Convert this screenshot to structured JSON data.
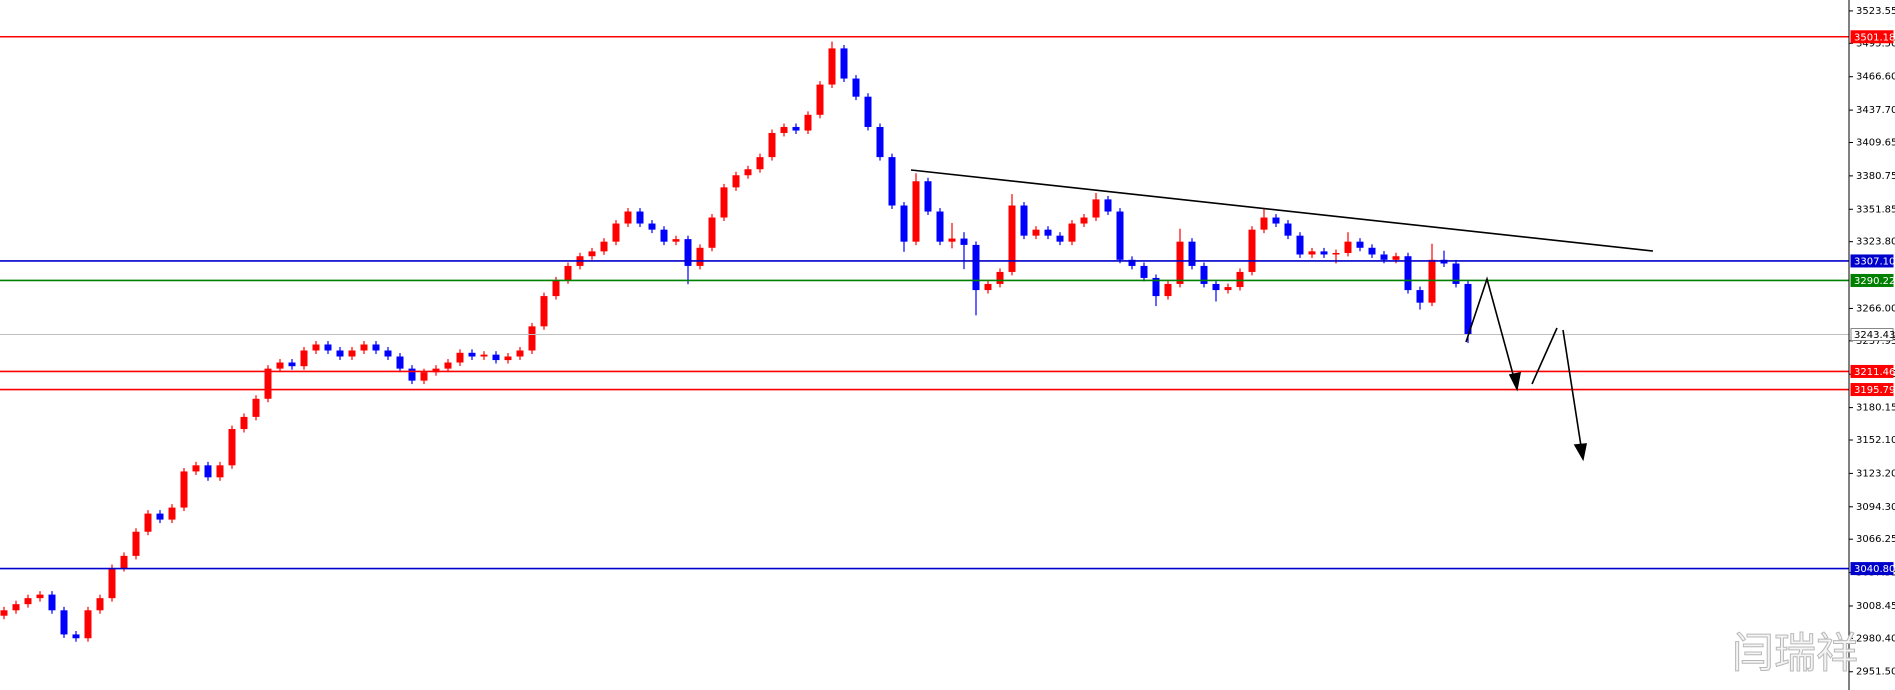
{
  "chart_data": {
    "type": "candlestick",
    "watermark": "闫瑞祥",
    "up_color": "#ff0000",
    "down_color": "#0000ff",
    "ylim": [
      2935.7,
      3533.0
    ],
    "yticks": [
      3523.55,
      {
        "value": 3495.5,
        "label": "3495.50"
      },
      {
        "value": 3466.6,
        "label": "3466.60"
      },
      {
        "value": 3437.7,
        "label": "3437.70"
      },
      3409.65,
      3380.75,
      3351.85,
      {
        "value": 3323.8,
        "label": "3323.80"
      },
      {
        "value": 3266.0,
        "label": "3266.00"
      },
      3237.95,
      3209.05,
      3180.15,
      {
        "value": 3152.1,
        "label": "3152.10"
      },
      {
        "value": 3123.2,
        "label": "3123.20"
      },
      {
        "value": 3094.3,
        "label": "3094.30"
      },
      3066.25,
      3037.35,
      3008.45,
      {
        "value": 2980.4,
        "label": "2980.40"
      },
      {
        "value": 2951.5,
        "label": "2951.50"
      }
    ],
    "levels": [
      {
        "value": 3501.18,
        "color": "#ff0000"
      },
      {
        "value": {
          "value": 3307.1,
          "label": "3307.10"
        },
        "color": "#0000cc"
      },
      {
        "value": 3290.22,
        "color": "#008000"
      },
      {
        "value": 3243.43,
        "color": "#c0c0c0"
      },
      {
        "value": 3211.46,
        "color": "#ff0000"
      },
      {
        "value": 3195.79,
        "color": "#ff0000"
      },
      {
        "value": {
          "value": 3040.8,
          "label": "3040.80"
        },
        "color": "#0000cc"
      }
    ],
    "ohlc": [
      [
        3000.0,
        3007.7,
        2997.0,
        3004.7
      ],
      [
        3004.7,
        3013.0,
        3001.7,
        3010.0
      ],
      [
        3010.0,
        3018.2,
        3007.0,
        3015.2
      ],
      [
        3015.2,
        3021.3,
        3012.2,
        3018.3
      ],
      [
        3018.3,
        3021.3,
        3001.7,
        3004.7
      ],
      [
        3004.7,
        3007.7,
        2980.8,
        2983.8
      ],
      [
        2983.8,
        2986.8,
        2977.5,
        2980.5
      ],
      [
        2980.5,
        3007.7,
        2977.5,
        3004.7
      ],
      [
        3004.7,
        3018.2,
        3001.7,
        3015.2
      ],
      [
        3015.2,
        3044.3,
        3012.2,
        3041.3
      ],
      [
        3041.3,
        3054.8,
        3038.3,
        3051.8
      ],
      [
        3051.8,
        3075.7,
        3048.8,
        3072.7
      ],
      [
        3072.7,
        3091.4,
        3069.7,
        3088.4
      ],
      [
        3088.4,
        3091.4,
        3080.2,
        3083.2
      ],
      [
        3083.2,
        3096.6,
        3080.2,
        3093.6
      ],
      [
        3093.6,
        3127.9,
        3090.6,
        3124.9
      ],
      [
        3124.9,
        3133.2,
        3121.9,
        3130.2
      ],
      [
        3130.2,
        3133.2,
        3116.8,
        3119.8
      ],
      [
        3119.8,
        3133.2,
        3116.8,
        3130.2
      ],
      [
        3130.2,
        3164.6,
        3127.2,
        3161.6
      ],
      [
        3161.6,
        3175.1,
        3158.6,
        3172.1
      ],
      [
        3172.1,
        3190.8,
        3169.1,
        3187.8
      ],
      [
        3187.8,
        3216.9,
        3184.8,
        3213.9
      ],
      [
        3213.9,
        3222.2,
        3210.9,
        3219.2
      ],
      [
        3219.2,
        3222.2,
        3213.0,
        3216.0
      ],
      [
        3216.0,
        3232.6,
        3213.0,
        3229.6
      ],
      [
        3229.6,
        3237.8,
        3226.6,
        3234.8
      ],
      [
        3234.8,
        3237.8,
        3226.6,
        3229.6
      ],
      [
        3229.6,
        3232.6,
        3221.4,
        3224.4
      ],
      [
        3224.4,
        3232.6,
        3221.4,
        3229.6
      ],
      [
        3229.6,
        3237.8,
        3226.6,
        3234.8
      ],
      [
        3234.8,
        3237.8,
        3226.6,
        3229.6
      ],
      [
        3229.6,
        3232.6,
        3221.4,
        3224.4
      ],
      [
        3224.4,
        3227.4,
        3210.9,
        3213.9
      ],
      [
        3213.9,
        3216.9,
        3200.5,
        3203.5
      ],
      [
        3203.5,
        3213.8,
        3200.5,
        3210.8
      ],
      [
        3210.8,
        3216.9,
        3207.8,
        3213.9
      ],
      [
        3213.9,
        3222.2,
        3210.9,
        3219.2
      ],
      [
        3219.2,
        3230.6,
        3216.2,
        3227.6
      ],
      [
        3227.6,
        3230.6,
        3221.4,
        3224.4
      ],
      [
        3224.4,
        3229.0,
        3221.4,
        3226.0
      ],
      [
        3226.0,
        3229.0,
        3218.3,
        3221.3
      ],
      [
        3221.3,
        3227.4,
        3218.3,
        3224.4
      ],
      [
        3224.4,
        3232.6,
        3221.4,
        3229.6
      ],
      [
        3229.6,
        3253.5,
        3226.6,
        3250.5
      ],
      [
        3250.5,
        3279.7,
        3247.5,
        3276.7
      ],
      [
        3276.7,
        3293.3,
        3273.7,
        3290.3
      ],
      [
        3290.3,
        3305.8,
        3287.3,
        3302.8
      ],
      [
        3302.8,
        3314.2,
        3299.8,
        3311.2
      ],
      [
        3311.2,
        3318.4,
        3308.2,
        3315.4
      ],
      [
        3315.4,
        3326.8,
        3312.4,
        3323.8
      ],
      [
        3323.8,
        3342.5,
        3320.8,
        3339.5
      ],
      [
        3339.5,
        3352.9,
        3336.5,
        3349.9
      ],
      [
        3349.9,
        3352.9,
        3336.5,
        3339.5
      ],
      [
        3339.5,
        3342.5,
        3331.2,
        3334.2
      ],
      [
        3334.2,
        3337.2,
        3320.8,
        3323.8
      ],
      [
        3323.8,
        3329.0,
        3320.8,
        3326.0
      ],
      [
        3326.0,
        3329.0,
        3287.0,
        3302.8
      ],
      [
        3302.8,
        3321.5,
        3299.8,
        3318.5
      ],
      [
        3318.5,
        3347.7,
        3315.5,
        3344.7
      ],
      [
        3344.7,
        3373.8,
        3341.7,
        3370.8
      ],
      [
        3370.8,
        3384.3,
        3367.8,
        3381.3
      ],
      [
        3381.3,
        3389.5,
        3378.3,
        3386.5
      ],
      [
        3386.5,
        3400.0,
        3383.5,
        3397.0
      ],
      [
        3397.0,
        3420.9,
        3394.0,
        3417.9
      ],
      [
        3417.9,
        3426.1,
        3414.9,
        3423.1
      ],
      [
        3423.1,
        3426.1,
        3417.0,
        3420.0
      ],
      [
        3420.0,
        3436.6,
        3417.0,
        3433.6
      ],
      [
        3433.6,
        3462.8,
        3430.6,
        3459.8
      ],
      [
        3459.8,
        3497.0,
        3456.8,
        3491.1
      ],
      [
        3491.1,
        3494.1,
        3462.0,
        3465.0
      ],
      [
        3465.0,
        3468.0,
        3446.3,
        3449.3
      ],
      [
        3449.3,
        3452.3,
        3420.1,
        3423.1
      ],
      [
        3423.1,
        3426.1,
        3394.0,
        3397.0
      ],
      [
        3397.0,
        3400.0,
        3352.1,
        3355.1
      ],
      [
        3355.1,
        3358.1,
        3315.0,
        3323.8
      ],
      [
        3323.8,
        3383.0,
        3320.8,
        3376.1
      ],
      [
        3376.1,
        3379.1,
        3346.9,
        3349.9
      ],
      [
        3349.9,
        3352.9,
        3320.8,
        3323.8
      ],
      [
        3323.8,
        3340.0,
        3318.0,
        3326.5
      ],
      [
        3326.5,
        3332.0,
        3300.0,
        3321.0
      ],
      [
        3321.0,
        3324.0,
        3260.0,
        3281.9
      ],
      [
        3281.9,
        3290.2,
        3278.9,
        3287.2
      ],
      [
        3287.2,
        3300.6,
        3284.2,
        3297.6
      ],
      [
        3297.6,
        3365.0,
        3294.6,
        3355.1
      ],
      [
        3355.1,
        3358.1,
        3326.0,
        3329.0
      ],
      [
        3329.0,
        3337.2,
        3326.0,
        3334.2
      ],
      [
        3334.2,
        3337.2,
        3326.0,
        3329.0
      ],
      [
        3329.0,
        3332.0,
        3320.8,
        3323.8
      ],
      [
        3323.8,
        3342.5,
        3320.8,
        3339.5
      ],
      [
        3339.5,
        3347.7,
        3336.5,
        3344.7
      ],
      [
        3344.7,
        3366.0,
        3341.7,
        3360.4
      ],
      [
        3360.4,
        3363.4,
        3346.9,
        3349.9
      ],
      [
        3349.9,
        3352.9,
        3305.1,
        3308.1
      ],
      [
        3308.1,
        3311.1,
        3299.8,
        3302.8
      ],
      [
        3302.8,
        3305.8,
        3289.4,
        3292.4
      ],
      [
        3292.4,
        3295.4,
        3268.0,
        3276.7
      ],
      [
        3276.7,
        3290.2,
        3273.7,
        3287.2
      ],
      [
        3287.2,
        3335.0,
        3284.2,
        3323.8
      ],
      [
        3323.8,
        3326.8,
        3299.8,
        3302.8
      ],
      [
        3302.8,
        3305.8,
        3284.2,
        3287.2
      ],
      [
        3287.2,
        3290.2,
        3272.0,
        3281.9
      ],
      [
        3281.9,
        3287.5,
        3278.9,
        3284.5
      ],
      [
        3284.5,
        3300.6,
        3281.5,
        3297.6
      ],
      [
        3297.6,
        3337.2,
        3294.6,
        3334.2
      ],
      [
        3334.2,
        3352.0,
        3331.2,
        3344.7
      ],
      [
        3344.7,
        3347.7,
        3336.5,
        3339.5
      ],
      [
        3339.5,
        3342.5,
        3326.0,
        3329.0
      ],
      [
        3329.0,
        3332.0,
        3309.7,
        3312.7
      ],
      [
        3312.7,
        3318.4,
        3309.7,
        3315.4
      ],
      [
        3315.4,
        3318.4,
        3309.7,
        3312.7
      ],
      [
        3312.7,
        3317.0,
        3305.0,
        3314.0
      ],
      [
        3314.0,
        3332.0,
        3311.0,
        3323.8
      ],
      [
        3323.8,
        3326.8,
        3315.5,
        3318.5
      ],
      [
        3318.5,
        3321.5,
        3309.7,
        3312.7
      ],
      [
        3312.7,
        3315.7,
        3305.1,
        3308.1
      ],
      [
        3308.1,
        3314.2,
        3305.1,
        3311.2
      ],
      [
        3311.2,
        3314.2,
        3278.9,
        3281.9
      ],
      [
        3281.9,
        3284.9,
        3265.0,
        3271.0
      ],
      [
        3271.0,
        3322.0,
        3268.0,
        3308.1
      ],
      [
        3308.1,
        3316.0,
        3301.9,
        3304.9
      ],
      [
        3304.9,
        3307.9,
        3284.2,
        3287.2
      ],
      [
        3287.2,
        3290.2,
        3236.0,
        3243.4
      ]
    ]
  }
}
